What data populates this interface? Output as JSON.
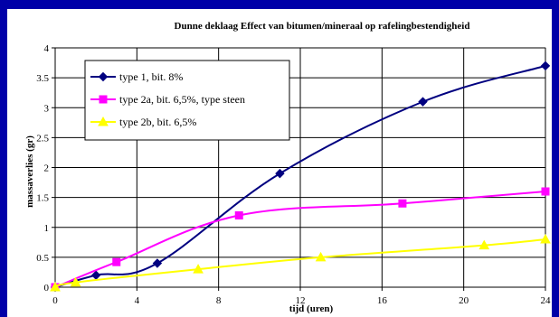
{
  "chart_data": {
    "type": "line",
    "title": "Dunne deklaag Effect van bitumen/mineraal op rafelingbestendigheid",
    "xlabel": "tijd (uren)",
    "ylabel": "massaverlies (gr)",
    "xlim": [
      0,
      24
    ],
    "ylim": [
      0,
      4
    ],
    "xticks": [
      "0",
      "4",
      "8",
      "12",
      "16",
      "20",
      "24"
    ],
    "yticks": [
      "0",
      "0.5",
      "1",
      "1.5",
      "2",
      "2.5",
      "3",
      "3.5",
      "4"
    ],
    "grid": true,
    "legend_position": "top-left",
    "series": [
      {
        "name": "type 1, bit. 8%",
        "color": "#000080",
        "marker": "diamond",
        "x": [
          0,
          2,
          5,
          11,
          18,
          24
        ],
        "y": [
          0,
          0.2,
          0.4,
          1.9,
          3.1,
          3.7
        ]
      },
      {
        "name": "type 2a, bit. 6,5%, type steen",
        "color": "#ff00ff",
        "marker": "square",
        "x": [
          0,
          3,
          9,
          17,
          24
        ],
        "y": [
          0,
          0.42,
          1.2,
          1.4,
          1.6
        ]
      },
      {
        "name": "type 2b, bit. 6,5%",
        "color": "#ffff00",
        "marker": "triangle",
        "x": [
          0,
          1,
          7,
          13,
          21,
          24
        ],
        "y": [
          0,
          0.08,
          0.3,
          0.5,
          0.7,
          0.8
        ]
      }
    ]
  }
}
